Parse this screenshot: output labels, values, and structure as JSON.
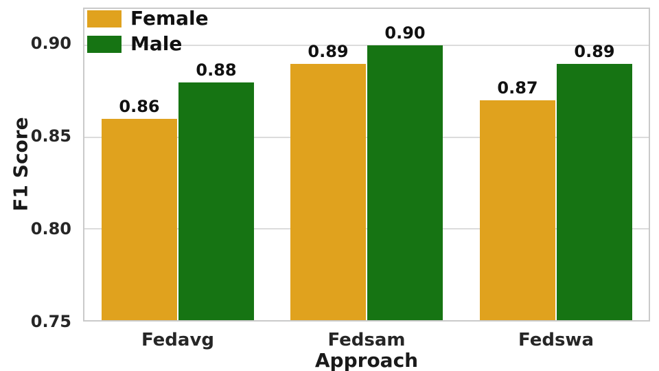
{
  "chart_data": {
    "type": "bar",
    "title": "",
    "xlabel": "Approach",
    "ylabel": "F1 Score",
    "categories": [
      "Fedavg",
      "Fedsam",
      "Fedswa"
    ],
    "series": [
      {
        "name": "Female",
        "color": "#E0A21E",
        "values": [
          0.86,
          0.89,
          0.87
        ],
        "labels": [
          "0.86",
          "0.89",
          "0.87"
        ]
      },
      {
        "name": "Male",
        "color": "#167413",
        "values": [
          0.88,
          0.9,
          0.89
        ],
        "labels": [
          "0.88",
          "0.90",
          "0.89"
        ]
      }
    ],
    "ylim": [
      0.75,
      0.92
    ],
    "yticks": [
      0.75,
      0.8,
      0.85,
      0.9
    ],
    "ytick_labels": [
      "0.75",
      "0.80",
      "0.85",
      "0.90"
    ],
    "grid": "horizontal-gridlines-on",
    "legend_position": "upper-left",
    "gridline_color": "#dcdcdc",
    "spine_color": "#cacaca"
  }
}
